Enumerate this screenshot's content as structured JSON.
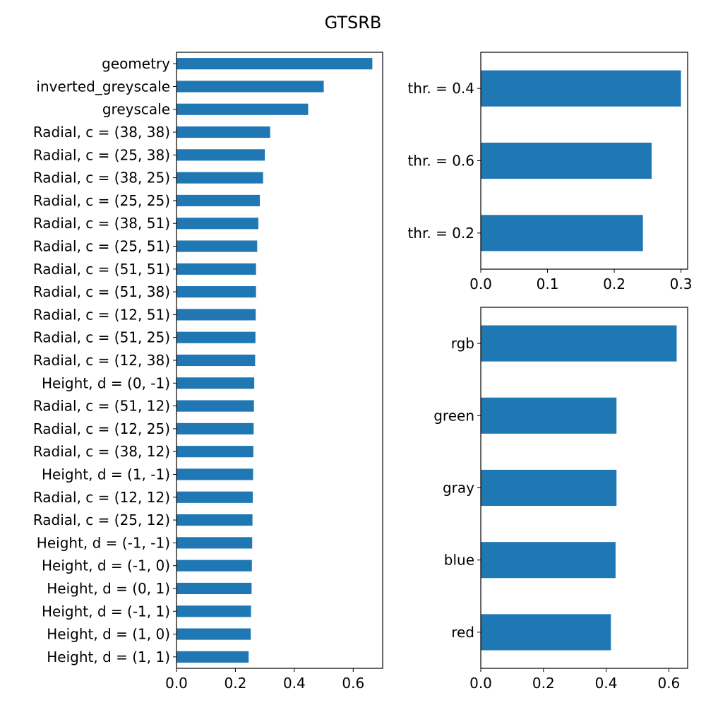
{
  "figure": {
    "title": "GTSRB",
    "bar_color": "#1f77b4"
  },
  "chart_data": [
    {
      "type": "bar",
      "orientation": "horizontal",
      "categories": [
        "geometry",
        "inverted_greyscale",
        "greyscale",
        "Radial, c = (38, 38)",
        "Radial, c = (25, 38)",
        "Radial, c = (38, 25)",
        "Radial, c = (25, 25)",
        "Radial, c = (38, 51)",
        "Radial, c = (25, 51)",
        "Radial, c = (51, 51)",
        "Radial, c = (51, 38)",
        "Radial, c = (12, 51)",
        "Radial, c = (51, 25)",
        "Radial, c = (12, 38)",
        "Height, d = (0, -1)",
        "Radial, c = (51, 12)",
        "Radial, c = (12, 25)",
        "Radial, c = (38, 12)",
        "Height, d = (1, -1)",
        "Radial, c = (12, 12)",
        "Radial, c = (25, 12)",
        "Height, d = (-1, -1)",
        "Height, d = (-1, 0)",
        "Height, d = (0, 1)",
        "Height, d = (-1, 1)",
        "Height, d = (1, 0)",
        "Height, d = (1, 1)"
      ],
      "values": [
        0.665,
        0.5,
        0.447,
        0.318,
        0.3,
        0.294,
        0.283,
        0.278,
        0.274,
        0.27,
        0.27,
        0.269,
        0.268,
        0.267,
        0.264,
        0.263,
        0.262,
        0.261,
        0.26,
        0.259,
        0.258,
        0.257,
        0.256,
        0.255,
        0.253,
        0.252,
        0.245
      ],
      "xticks": [
        "0.0",
        "0.2",
        "0.4",
        "0.6"
      ],
      "xtick_values": [
        0,
        0.2,
        0.4,
        0.6
      ],
      "xlim": [
        0,
        0.7
      ],
      "grid": false
    },
    {
      "type": "bar",
      "orientation": "horizontal",
      "categories": [
        "thr. = 0.4",
        "thr. = 0.6",
        "thr. = 0.2"
      ],
      "values": [
        0.3,
        0.256,
        0.243
      ],
      "xticks": [
        "0.0",
        "0.1",
        "0.2",
        "0.3"
      ],
      "xtick_values": [
        0,
        0.1,
        0.2,
        0.3
      ],
      "xlim": [
        0,
        0.31
      ],
      "grid": false
    },
    {
      "type": "bar",
      "orientation": "horizontal",
      "categories": [
        "rgb",
        "green",
        "gray",
        "blue",
        "red"
      ],
      "values": [
        0.625,
        0.433,
        0.433,
        0.43,
        0.415
      ],
      "xticks": [
        "0.0",
        "0.2",
        "0.4",
        "0.6"
      ],
      "xtick_values": [
        0,
        0.2,
        0.4,
        0.6
      ],
      "xlim": [
        0,
        0.66
      ],
      "grid": false
    }
  ]
}
